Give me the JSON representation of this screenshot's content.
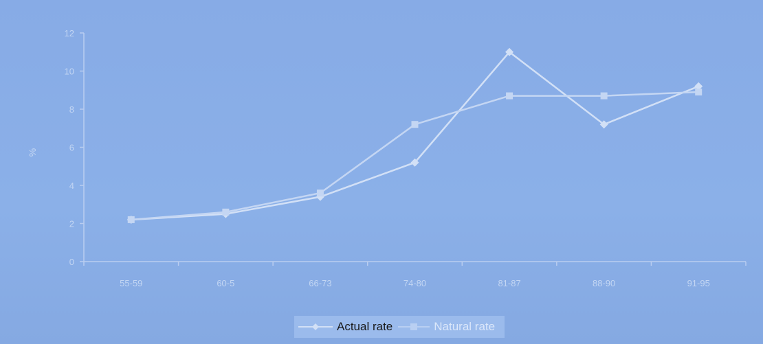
{
  "chart_data": {
    "type": "line",
    "title": "",
    "xlabel": "",
    "ylabel": "%",
    "categories": [
      "55-59",
      "60-5",
      "66-73",
      "74-80",
      "81-87",
      "88-90",
      "91-95"
    ],
    "ylim": [
      0,
      12
    ],
    "yticks": [
      0,
      2,
      4,
      6,
      8,
      10,
      12
    ],
    "grid": false,
    "legend_position": "bottom",
    "series": [
      {
        "name": "Actual rate",
        "marker": "diamond",
        "color": "#d2e0f6",
        "values": [
          2.2,
          2.5,
          3.4,
          5.2,
          11.0,
          7.2,
          9.2
        ]
      },
      {
        "name": "Natural rate",
        "marker": "square",
        "color": "#c4d6f3",
        "values": [
          2.2,
          2.6,
          3.6,
          7.2,
          8.7,
          8.7,
          8.9
        ]
      }
    ]
  },
  "legend": {
    "actual_label": "Actual rate",
    "natural_label": "Natural rate"
  }
}
